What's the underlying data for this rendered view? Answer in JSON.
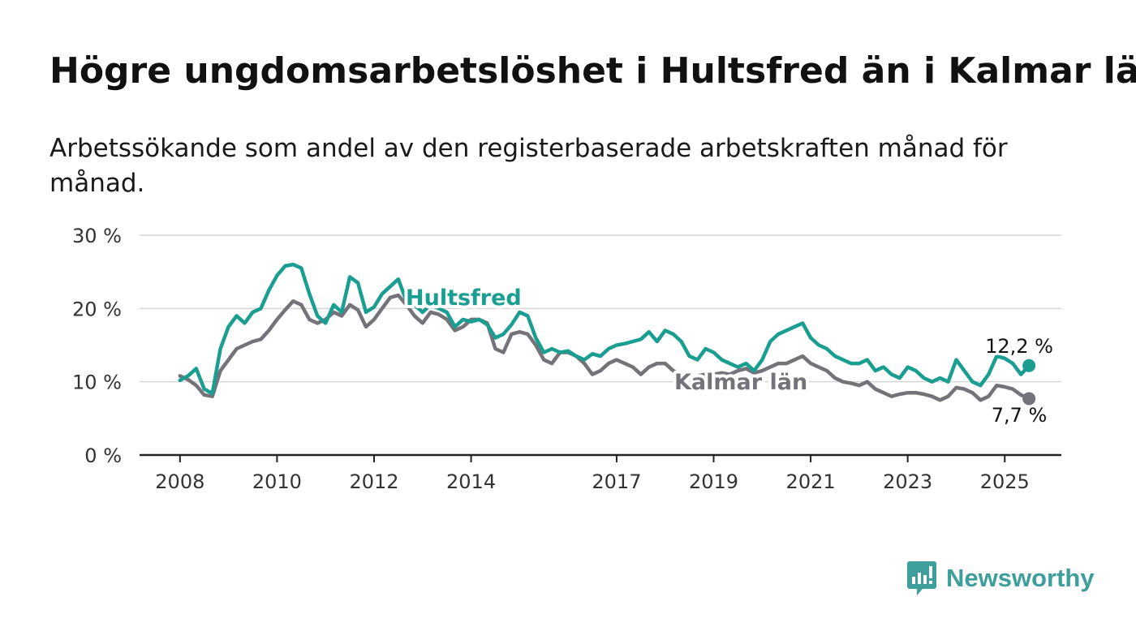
{
  "title": "Högre ungdomsarbetslöshet i Hultsfred än i Kalmar län",
  "subtitle": "Arbetssökande som andel av den registerbaserade arbetskraften månad för månad.",
  "brand": {
    "name": "Newsworthy",
    "color": "#3e9e9c",
    "icon": "newsworthy-logo-icon"
  },
  "chart_data": {
    "type": "line",
    "title": "Högre ungdomsarbetslöshet i Hultsfred än i Kalmar län",
    "subtitle": "Arbetssökande som andel av den registerbaserade arbetskraften månad för månad.",
    "xlabel": "",
    "ylabel": "",
    "ylim": [
      0,
      30
    ],
    "xlim": [
      "2007-03",
      "2026-03"
    ],
    "grid": "horizontal",
    "legend": "inline labels",
    "y_ticks": [
      {
        "value": 0,
        "label": "0 %"
      },
      {
        "value": 10,
        "label": "10 %"
      },
      {
        "value": 20,
        "label": "20 %"
      },
      {
        "value": 30,
        "label": "30 %"
      }
    ],
    "x_ticks": [
      {
        "value": "2008-01",
        "label": "2008"
      },
      {
        "value": "2010-01",
        "label": "2010"
      },
      {
        "value": "2012-01",
        "label": "2012"
      },
      {
        "value": "2014-01",
        "label": "2014"
      },
      {
        "value": "2017-01",
        "label": "2017"
      },
      {
        "value": "2019-01",
        "label": "2019"
      },
      {
        "value": "2021-01",
        "label": "2021"
      },
      {
        "value": "2023-01",
        "label": "2023"
      },
      {
        "value": "2025-01",
        "label": "2025"
      }
    ],
    "series": [
      {
        "name": "Hultsfred",
        "color": "#1a9e91",
        "end_label": "12,2 %",
        "end_value": 12.2,
        "points": [
          [
            "2008-01",
            10.2
          ],
          [
            "2008-03",
            10.8
          ],
          [
            "2008-05",
            11.8
          ],
          [
            "2008-07",
            9.0
          ],
          [
            "2008-09",
            8.4
          ],
          [
            "2008-11",
            14.5
          ],
          [
            "2009-01",
            17.5
          ],
          [
            "2009-03",
            19.0
          ],
          [
            "2009-05",
            18.0
          ],
          [
            "2009-07",
            19.5
          ],
          [
            "2009-09",
            20.0
          ],
          [
            "2009-11",
            22.5
          ],
          [
            "2010-01",
            24.5
          ],
          [
            "2010-03",
            25.8
          ],
          [
            "2010-05",
            26.0
          ],
          [
            "2010-07",
            25.5
          ],
          [
            "2010-09",
            22.0
          ],
          [
            "2010-11",
            19.0
          ],
          [
            "2011-01",
            18.0
          ],
          [
            "2011-03",
            20.5
          ],
          [
            "2011-05",
            19.5
          ],
          [
            "2011-07",
            24.3
          ],
          [
            "2011-09",
            23.5
          ],
          [
            "2011-11",
            19.5
          ],
          [
            "2012-01",
            20.2
          ],
          [
            "2012-03",
            22.0
          ],
          [
            "2012-05",
            23.0
          ],
          [
            "2012-07",
            24.0
          ],
          [
            "2012-09",
            21.0
          ],
          [
            "2012-11",
            20.5
          ],
          [
            "2013-01",
            19.5
          ],
          [
            "2013-03",
            20.5
          ],
          [
            "2013-05",
            20.0
          ],
          [
            "2013-07",
            19.5
          ],
          [
            "2013-09",
            17.5
          ],
          [
            "2013-11",
            18.5
          ],
          [
            "2014-01",
            18.2
          ],
          [
            "2014-03",
            18.5
          ],
          [
            "2014-05",
            17.8
          ],
          [
            "2014-07",
            16.0
          ],
          [
            "2014-09",
            16.5
          ],
          [
            "2014-11",
            17.8
          ],
          [
            "2015-01",
            19.5
          ],
          [
            "2015-03",
            19.0
          ],
          [
            "2015-05",
            16.0
          ],
          [
            "2015-07",
            14.0
          ],
          [
            "2015-09",
            14.5
          ],
          [
            "2015-11",
            14.0
          ],
          [
            "2016-01",
            14.2
          ],
          [
            "2016-03",
            13.5
          ],
          [
            "2016-05",
            13.0
          ],
          [
            "2016-07",
            13.8
          ],
          [
            "2016-09",
            13.5
          ],
          [
            "2016-11",
            14.5
          ],
          [
            "2017-01",
            15.0
          ],
          [
            "2017-03",
            15.2
          ],
          [
            "2017-05",
            15.5
          ],
          [
            "2017-07",
            15.8
          ],
          [
            "2017-09",
            16.8
          ],
          [
            "2017-11",
            15.5
          ],
          [
            "2018-01",
            17.0
          ],
          [
            "2018-03",
            16.5
          ],
          [
            "2018-05",
            15.5
          ],
          [
            "2018-07",
            13.5
          ],
          [
            "2018-09",
            13.0
          ],
          [
            "2018-11",
            14.5
          ],
          [
            "2019-01",
            14.0
          ],
          [
            "2019-03",
            13.0
          ],
          [
            "2019-05",
            12.5
          ],
          [
            "2019-07",
            12.0
          ],
          [
            "2019-09",
            12.5
          ],
          [
            "2019-11",
            11.5
          ],
          [
            "2020-01",
            13.0
          ],
          [
            "2020-03",
            15.5
          ],
          [
            "2020-05",
            16.5
          ],
          [
            "2020-07",
            17.0
          ],
          [
            "2020-09",
            17.5
          ],
          [
            "2020-11",
            18.0
          ],
          [
            "2021-01",
            16.0
          ],
          [
            "2021-03",
            15.0
          ],
          [
            "2021-05",
            14.5
          ],
          [
            "2021-07",
            13.5
          ],
          [
            "2021-09",
            13.0
          ],
          [
            "2021-11",
            12.5
          ],
          [
            "2022-01",
            12.5
          ],
          [
            "2022-03",
            13.0
          ],
          [
            "2022-05",
            11.5
          ],
          [
            "2022-07",
            12.0
          ],
          [
            "2022-09",
            11.0
          ],
          [
            "2022-11",
            10.5
          ],
          [
            "2023-01",
            12.0
          ],
          [
            "2023-03",
            11.5
          ],
          [
            "2023-05",
            10.5
          ],
          [
            "2023-07",
            10.0
          ],
          [
            "2023-09",
            10.5
          ],
          [
            "2023-11",
            10.0
          ],
          [
            "2024-01",
            13.0
          ],
          [
            "2024-03",
            11.5
          ],
          [
            "2024-05",
            10.0
          ],
          [
            "2024-07",
            9.5
          ],
          [
            "2024-09",
            11.0
          ],
          [
            "2024-11",
            13.5
          ],
          [
            "2025-01",
            13.2
          ],
          [
            "2025-03",
            12.5
          ],
          [
            "2025-05",
            11.0
          ],
          [
            "2025-07",
            12.2
          ]
        ]
      },
      {
        "name": "Kalmar län",
        "color": "#75737a",
        "end_label": "7,7 %",
        "end_value": 7.7,
        "points": [
          [
            "2008-01",
            10.8
          ],
          [
            "2008-03",
            10.3
          ],
          [
            "2008-05",
            9.5
          ],
          [
            "2008-07",
            8.2
          ],
          [
            "2008-09",
            8.0
          ],
          [
            "2008-11",
            11.5
          ],
          [
            "2009-01",
            13.0
          ],
          [
            "2009-03",
            14.5
          ],
          [
            "2009-05",
            15.0
          ],
          [
            "2009-07",
            15.5
          ],
          [
            "2009-09",
            15.8
          ],
          [
            "2009-11",
            17.0
          ],
          [
            "2010-01",
            18.5
          ],
          [
            "2010-03",
            19.8
          ],
          [
            "2010-05",
            21.0
          ],
          [
            "2010-07",
            20.5
          ],
          [
            "2010-09",
            18.5
          ],
          [
            "2010-11",
            18.0
          ],
          [
            "2011-01",
            18.5
          ],
          [
            "2011-03",
            19.5
          ],
          [
            "2011-05",
            19.0
          ],
          [
            "2011-07",
            20.5
          ],
          [
            "2011-09",
            19.8
          ],
          [
            "2011-11",
            17.5
          ],
          [
            "2012-01",
            18.5
          ],
          [
            "2012-03",
            20.0
          ],
          [
            "2012-05",
            21.5
          ],
          [
            "2012-07",
            21.8
          ],
          [
            "2012-09",
            20.5
          ],
          [
            "2012-11",
            19.0
          ],
          [
            "2013-01",
            18.0
          ],
          [
            "2013-03",
            19.5
          ],
          [
            "2013-05",
            19.2
          ],
          [
            "2013-07",
            18.5
          ],
          [
            "2013-09",
            17.0
          ],
          [
            "2013-11",
            17.5
          ],
          [
            "2014-01",
            18.5
          ],
          [
            "2014-03",
            18.5
          ],
          [
            "2014-05",
            18.0
          ],
          [
            "2014-07",
            14.5
          ],
          [
            "2014-09",
            14.0
          ],
          [
            "2014-11",
            16.5
          ],
          [
            "2015-01",
            16.8
          ],
          [
            "2015-03",
            16.5
          ],
          [
            "2015-05",
            15.0
          ],
          [
            "2015-07",
            13.0
          ],
          [
            "2015-09",
            12.5
          ],
          [
            "2015-11",
            14.0
          ],
          [
            "2016-01",
            14.0
          ],
          [
            "2016-03",
            13.5
          ],
          [
            "2016-05",
            12.5
          ],
          [
            "2016-07",
            11.0
          ],
          [
            "2016-09",
            11.5
          ],
          [
            "2016-11",
            12.5
          ],
          [
            "2017-01",
            13.0
          ],
          [
            "2017-03",
            12.5
          ],
          [
            "2017-05",
            12.0
          ],
          [
            "2017-07",
            11.0
          ],
          [
            "2017-09",
            12.0
          ],
          [
            "2017-11",
            12.5
          ],
          [
            "2018-01",
            12.5
          ],
          [
            "2018-03",
            11.5
          ],
          [
            "2018-05",
            11.0
          ],
          [
            "2018-07",
            10.5
          ],
          [
            "2018-09",
            10.8
          ],
          [
            "2018-11",
            11.0
          ],
          [
            "2019-01",
            11.0
          ],
          [
            "2019-03",
            11.2
          ],
          [
            "2019-05",
            11.0
          ],
          [
            "2019-07",
            11.5
          ],
          [
            "2019-09",
            11.8
          ],
          [
            "2019-11",
            11.2
          ],
          [
            "2020-01",
            11.5
          ],
          [
            "2020-03",
            12.0
          ],
          [
            "2020-05",
            12.5
          ],
          [
            "2020-07",
            12.5
          ],
          [
            "2020-09",
            13.0
          ],
          [
            "2020-11",
            13.5
          ],
          [
            "2021-01",
            12.5
          ],
          [
            "2021-03",
            12.0
          ],
          [
            "2021-05",
            11.5
          ],
          [
            "2021-07",
            10.5
          ],
          [
            "2021-09",
            10.0
          ],
          [
            "2021-11",
            9.8
          ],
          [
            "2022-01",
            9.5
          ],
          [
            "2022-03",
            10.0
          ],
          [
            "2022-05",
            9.0
          ],
          [
            "2022-07",
            8.5
          ],
          [
            "2022-09",
            8.0
          ],
          [
            "2022-11",
            8.3
          ],
          [
            "2023-01",
            8.5
          ],
          [
            "2023-03",
            8.5
          ],
          [
            "2023-05",
            8.3
          ],
          [
            "2023-07",
            8.0
          ],
          [
            "2023-09",
            7.5
          ],
          [
            "2023-11",
            8.0
          ],
          [
            "2024-01",
            9.2
          ],
          [
            "2024-03",
            9.0
          ],
          [
            "2024-05",
            8.5
          ],
          [
            "2024-07",
            7.5
          ],
          [
            "2024-09",
            8.0
          ],
          [
            "2024-11",
            9.5
          ],
          [
            "2025-01",
            9.3
          ],
          [
            "2025-03",
            9.0
          ],
          [
            "2025-05",
            8.2
          ],
          [
            "2025-07",
            7.7
          ]
        ]
      }
    ]
  }
}
